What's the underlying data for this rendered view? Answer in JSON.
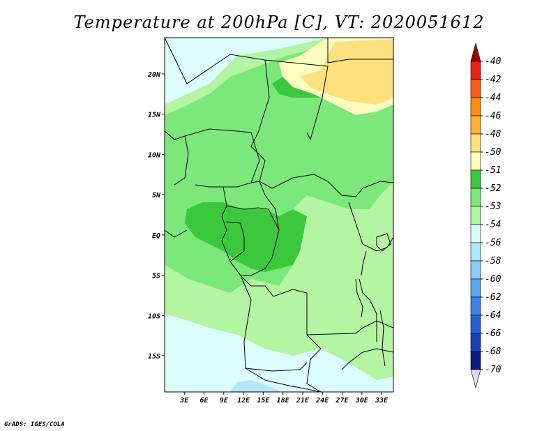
{
  "title": "Temperature at 200hPa [C], VT: 2020051612",
  "credit": "GrADS: IGES/COLA",
  "map": {
    "lat_range": [
      -19.5,
      24.5
    ],
    "lon_range": [
      0,
      34.8
    ],
    "lat_ticks": [
      "20N",
      "15N",
      "10N",
      "5N",
      "EQ",
      "5S",
      "10S",
      "15S"
    ],
    "lat_tick_values": [
      20,
      15,
      10,
      5,
      0,
      -5,
      -10,
      -15
    ],
    "lon_ticks": [
      "3E",
      "6E",
      "9E",
      "12E",
      "15E",
      "18E",
      "21E",
      "24E",
      "27E",
      "30E",
      "33E"
    ],
    "lon_tick_values": [
      3,
      6,
      9,
      12,
      15,
      18,
      21,
      24,
      27,
      30,
      33
    ]
  },
  "colorbar": {
    "labels": [
      "-40",
      "-42",
      "-44",
      "-46",
      "-48",
      "-50",
      "-51",
      "-52",
      "-53",
      "-54",
      "-56",
      "-58",
      "-60",
      "-62",
      "-64",
      "-66",
      "-68",
      "-70"
    ],
    "colors": [
      "#a00000",
      "#e8221a",
      "#f65a14",
      "#fb8c12",
      "#fcb034",
      "#fde17e",
      "#fefdbe",
      "#3cc83c",
      "#7ce87c",
      "#b4f5a4",
      "#dcfdfc",
      "#b4e6fc",
      "#8ccaf8",
      "#5aa6f0",
      "#3c82e6",
      "#2460d2",
      "#1440b0",
      "#0c1a82",
      "#dcdcf8"
    ]
  },
  "palette": {
    "c52": "#3cc83c",
    "c53": "#7ce87c",
    "c54": "#b4f5a4",
    "c56": "#dcfdfc",
    "c58": "#b4e6fc",
    "c50": "#fde17e",
    "c51": "#fefdbe"
  }
}
